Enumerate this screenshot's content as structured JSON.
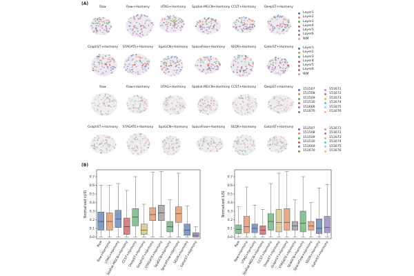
{
  "panel_a_label": "(A)",
  "panel_b_label": "(B)",
  "umap_rows": [
    {
      "titles": [
        "Raw",
        "Raw+Harmony",
        "UTAG+Harmony",
        "Spatial-MGCN+Harmony",
        "CCST+Harmony",
        "DeepST+Harmony"
      ],
      "coloring": "layer"
    },
    {
      "titles": [
        "GraphST+Harmony",
        "STAGATE+Harmony",
        "SpaGCN+Harmony",
        "SpaceFlow+Harmony",
        "SEDR+Harmony",
        "GatorST+Harmony"
      ],
      "coloring": "layer"
    },
    {
      "titles": [
        "Raw",
        "Raw+Harmony",
        "UTAG+Harmony",
        "Spatial-MGCN+Harmony",
        "CCST+Harmony",
        "DeepST+Harmony"
      ],
      "coloring": "sample"
    },
    {
      "titles": [
        "GraphST+Harmony",
        "STAGATE+Harmony",
        "SpaGCN+Harmony",
        "SpaceFlow+Harmony",
        "SEDR+Harmony",
        "GatorST+Harmony"
      ],
      "coloring": "sample"
    }
  ],
  "layer_legend": [
    {
      "label": "Layer1",
      "color": "#4c72b0"
    },
    {
      "label": "Layer2",
      "color": "#dd8452"
    },
    {
      "label": "Layer3",
      "color": "#55a868"
    },
    {
      "label": "Layer4",
      "color": "#c44e52"
    },
    {
      "label": "Layer5",
      "color": "#8172b3"
    },
    {
      "label": "Layer6",
      "color": "#937860"
    },
    {
      "label": "WM",
      "color": "#da8bc3"
    }
  ],
  "sample_legend": [
    {
      "label": "151507",
      "color": "#4c72b0"
    },
    {
      "label": "151671",
      "color": "#da8bc3"
    },
    {
      "label": "151508",
      "color": "#dd8452"
    },
    {
      "label": "151672",
      "color": "#8c8c8c"
    },
    {
      "label": "151509",
      "color": "#55a868"
    },
    {
      "label": "151673",
      "color": "#ccb974"
    },
    {
      "label": "151510",
      "color": "#c44e52"
    },
    {
      "label": "151674",
      "color": "#64b5cd"
    },
    {
      "label": "151669",
      "color": "#8172b3"
    },
    {
      "label": "151675",
      "color": "#a1c9f4"
    },
    {
      "label": "151670",
      "color": "#937860"
    },
    {
      "label": "151676",
      "color": "#ffb482"
    }
  ],
  "chart_data": [
    {
      "type": "box",
      "ylabel": "Normalized cLISI",
      "ylim": [
        -0.02,
        0.78
      ],
      "yticks": [
        0.0,
        0.1,
        0.2,
        0.3,
        0.4,
        0.5,
        0.6,
        0.7
      ],
      "categories": [
        "Raw",
        "Raw+Harmony",
        "UTAG+Harmony",
        "Spatial-MGCN+Harmony",
        "CCST+Harmony",
        "DeepST+Harmony",
        "GraphST+Harmony",
        "STAGATE+Harmony",
        "SpaGCN+Harmony",
        "SpaceFlow+Harmony",
        "SEDR+Harmony",
        "GatorST+Harmony"
      ],
      "colors": [
        "#4c72b0",
        "#dd8452",
        "#4c72b0",
        "#c44e52",
        "#55a868",
        "#ccb974",
        "#dd8452",
        "#8c8c8c",
        "#55a868",
        "#dd8452",
        "#4c72b0",
        "#8172b3"
      ],
      "boxes": [
        {
          "min": 0.0,
          "q1": 0.08,
          "median": 0.18,
          "q3": 0.29,
          "max": 0.6
        },
        {
          "min": 0.0,
          "q1": 0.08,
          "median": 0.18,
          "q3": 0.28,
          "max": 0.6
        },
        {
          "min": 0.0,
          "q1": 0.11,
          "median": 0.21,
          "q3": 0.31,
          "max": 0.62
        },
        {
          "min": 0.0,
          "q1": 0.03,
          "median": 0.12,
          "q3": 0.22,
          "max": 0.54
        },
        {
          "min": 0.0,
          "q1": 0.13,
          "median": 0.23,
          "q3": 0.33,
          "max": 0.7
        },
        {
          "min": 0.0,
          "q1": 0.03,
          "median": 0.08,
          "q3": 0.15,
          "max": 0.38
        },
        {
          "min": 0.0,
          "q1": 0.19,
          "median": 0.26,
          "q3": 0.34,
          "max": 0.75
        },
        {
          "min": 0.0,
          "q1": 0.19,
          "median": 0.28,
          "q3": 0.37,
          "max": 0.76
        },
        {
          "min": 0.0,
          "q1": 0.06,
          "median": 0.12,
          "q3": 0.18,
          "max": 0.43
        },
        {
          "min": 0.0,
          "q1": 0.17,
          "median": 0.27,
          "q3": 0.35,
          "max": 0.74
        },
        {
          "min": 0.0,
          "q1": 0.02,
          "median": 0.08,
          "q3": 0.15,
          "max": 0.36
        },
        {
          "min": 0.0,
          "q1": 0.0,
          "median": 0.02,
          "q3": 0.05,
          "max": 0.12
        }
      ]
    },
    {
      "type": "box",
      "ylabel": "Normalized iLISI",
      "ylim": [
        -0.02,
        0.78
      ],
      "yticks": [
        0.0,
        0.1,
        0.2,
        0.3,
        0.4,
        0.5,
        0.6,
        0.7
      ],
      "categories": [
        "Raw",
        "Raw+Harmony",
        "UTAG+Harmony",
        "Spatial-MGCN+Harmony",
        "CCST+Harmony",
        "DeepST+Harmony",
        "GraphST+Harmony",
        "STAGATE+Harmony",
        "SpaGCN+Harmony",
        "SpaceFlow+Harmony",
        "SEDR+Harmony",
        "GatorST+Harmony"
      ],
      "colors": [
        "#55a868",
        "#dd8452",
        "#4c72b0",
        "#c44e52",
        "#55a868",
        "#ccb974",
        "#dd8452",
        "#8c8c8c",
        "#55a868",
        "#dd8452",
        "#4c72b0",
        "#8172b3"
      ],
      "boxes": [
        {
          "min": 0.0,
          "q1": 0.04,
          "median": 0.09,
          "q3": 0.14,
          "max": 0.35
        },
        {
          "min": 0.0,
          "q1": 0.05,
          "median": 0.12,
          "q3": 0.24,
          "max": 0.58
        },
        {
          "min": 0.0,
          "q1": 0.05,
          "median": 0.1,
          "q3": 0.15,
          "max": 0.37
        },
        {
          "min": 0.0,
          "q1": 0.03,
          "median": 0.08,
          "q3": 0.13,
          "max": 0.32
        },
        {
          "min": 0.0,
          "q1": 0.08,
          "median": 0.18,
          "q3": 0.27,
          "max": 0.62
        },
        {
          "min": 0.0,
          "q1": 0.06,
          "median": 0.17,
          "q3": 0.32,
          "max": 0.74
        },
        {
          "min": 0.0,
          "q1": 0.08,
          "median": 0.17,
          "q3": 0.33,
          "max": 0.76
        },
        {
          "min": 0.0,
          "q1": 0.08,
          "median": 0.13,
          "q3": 0.18,
          "max": 0.43
        },
        {
          "min": 0.0,
          "q1": 0.06,
          "median": 0.16,
          "q3": 0.3,
          "max": 0.7
        },
        {
          "min": 0.0,
          "q1": 0.08,
          "median": 0.13,
          "q3": 0.18,
          "max": 0.4
        },
        {
          "min": 0.0,
          "q1": 0.04,
          "median": 0.1,
          "q3": 0.21,
          "max": 0.57
        },
        {
          "min": 0.0,
          "q1": 0.05,
          "median": 0.11,
          "q3": 0.24,
          "max": 0.61
        }
      ]
    }
  ]
}
